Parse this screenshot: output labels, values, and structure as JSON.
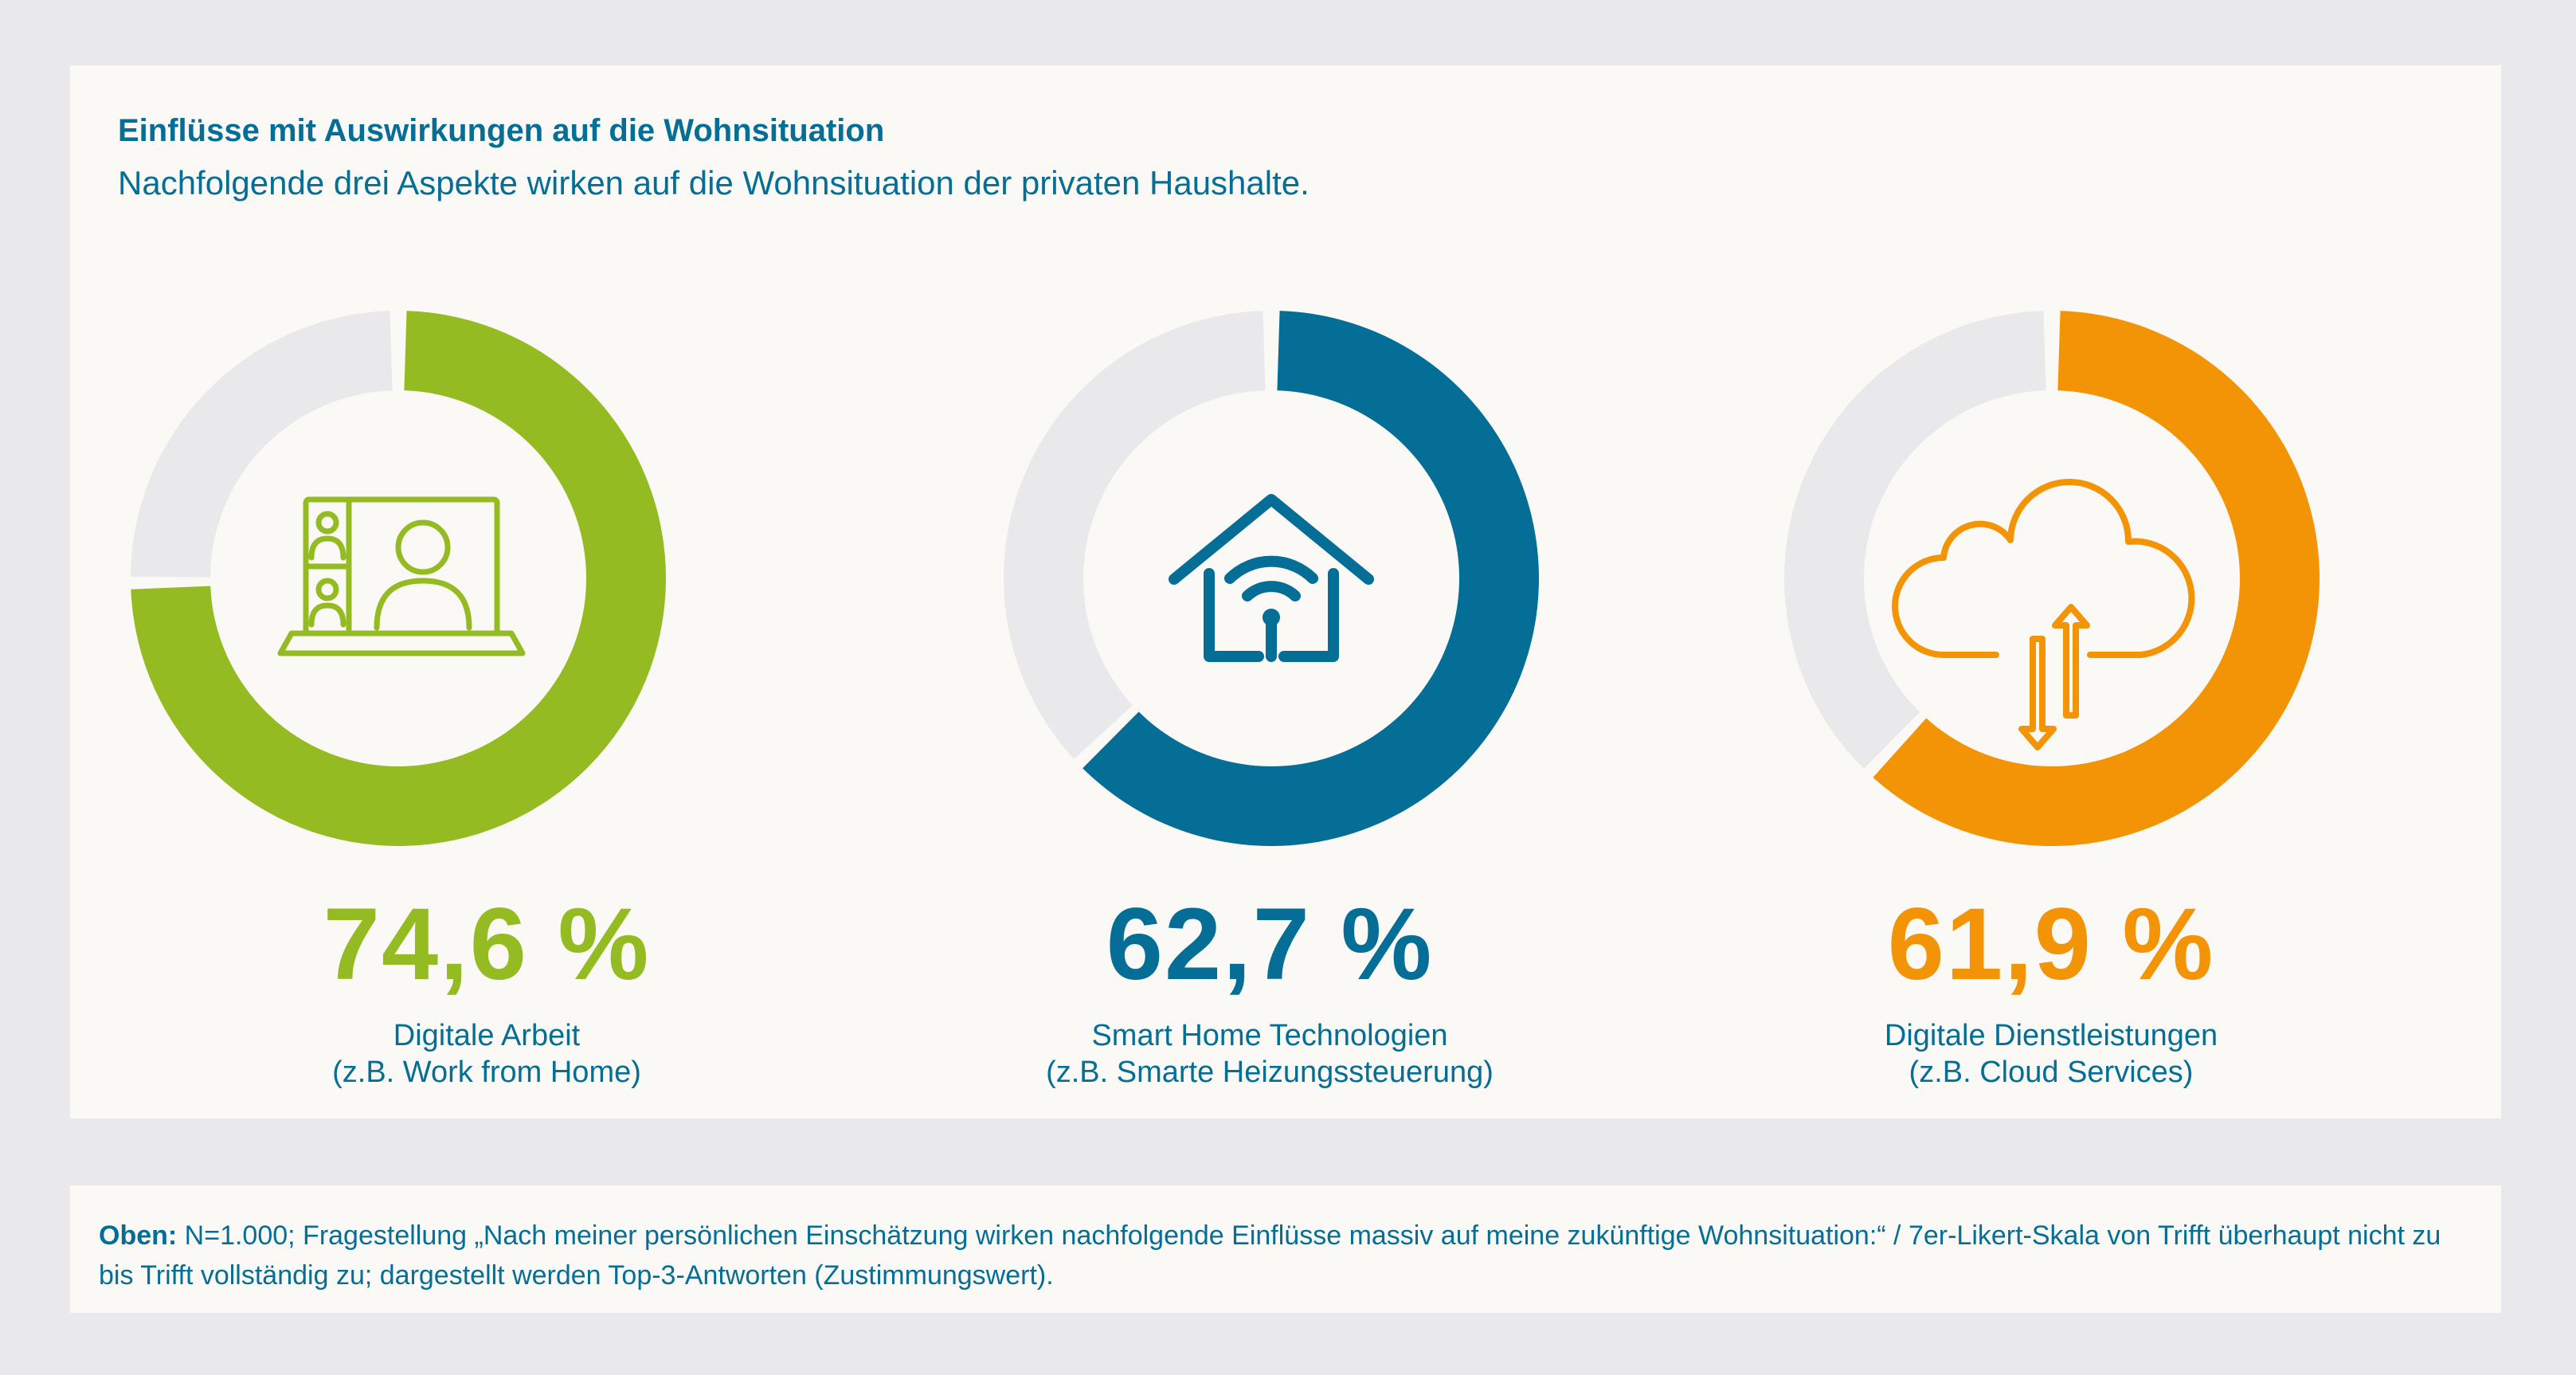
{
  "header": {
    "title": "Einflüsse mit Auswirkungen auf die Wohnsituation",
    "subtitle": "Nachfolgende drei Aspekte wirken auf die Wohnsituation der privaten Haushalte."
  },
  "chart_data": [
    {
      "type": "pie",
      "variant": "donut",
      "value": 74.6,
      "value_label": "74,6 %",
      "label_line1": "Digitale Arbeit",
      "label_line2": "(z.B. Work from Home)",
      "color": "#95bb22",
      "track_color": "#e9e9ec",
      "icon": "laptop-video-call-icon"
    },
    {
      "type": "pie",
      "variant": "donut",
      "value": 62.7,
      "value_label": "62,7 %",
      "label_line1": "Smart Home Technologien",
      "label_line2": "(z.B. Smarte Heizungssteuerung)",
      "color": "#046e96",
      "track_color": "#e9e9ec",
      "icon": "smart-home-icon"
    },
    {
      "type": "pie",
      "variant": "donut",
      "value": 61.9,
      "value_label": "61,9 %",
      "label_line1": "Digitale Dienstleistungen",
      "label_line2": "(z.B. Cloud Services)",
      "color": "#f29406",
      "track_color": "#e9e9ec",
      "icon": "cloud-transfer-icon"
    }
  ],
  "footnote": {
    "prefix": "Oben:",
    "text": " N=1.000; Fragestellung „Nach meiner persönlichen Einschätzung wirken nachfolgende Einflüsse massiv auf meine zukünftige Wohnsituation:“ / 7er-Likert-Skala von Trifft überhaupt nicht zu bis Trifft vollständig zu; dargestellt werden Top-3-Antworten (Zustimmungswert)."
  }
}
